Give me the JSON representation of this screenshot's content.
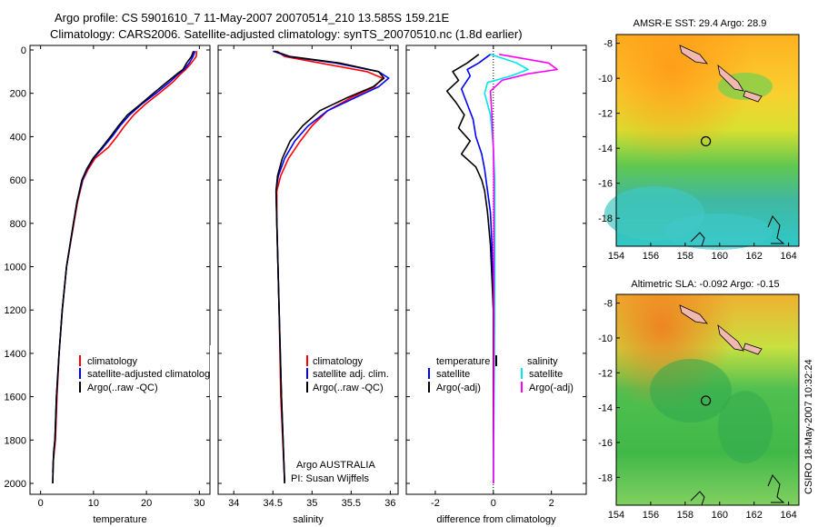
{
  "header": {
    "line1": "Argo profile: CS 5901610_7 11-May-2007 20070514_210 13.585S 159.21E",
    "line2": "Climatology: CARS2006. Satellite-adjusted climatology: synTS_20070510.nc (1.8d earlier)"
  },
  "stamp": "CSIRO 18-May-2007 10:32:24",
  "colors": {
    "red": "#ff0000",
    "blue": "#0000ff",
    "black": "#000000",
    "cyan": "#00e5ee",
    "magenta": "#ff00ff"
  },
  "chart_data": [
    {
      "id": "temperature",
      "type": "line",
      "xlabel": "temperature",
      "ylabel": "",
      "xlim": [
        -2,
        32
      ],
      "ylim": [
        2050,
        0
      ],
      "xticks": [
        0,
        10,
        20,
        30
      ],
      "yticks": [
        0,
        200,
        400,
        600,
        800,
        1000,
        1200,
        1400,
        1600,
        1800,
        2000
      ],
      "legend": [
        "climatology",
        "satellite-adjusted climatology",
        "Argo(..raw -QC)"
      ],
      "series": [
        {
          "name": "climatology",
          "color": "red",
          "x": [
            29.5,
            29.4,
            28.5,
            27.4,
            26.5,
            24.9,
            22.4,
            19.8,
            17.6,
            15.9,
            14.4,
            12.8,
            10.3,
            9.0,
            8.0,
            7.0,
            6.3,
            4.9,
            4.1,
            3.5,
            3.1,
            2.8,
            2.6,
            2.4,
            2.3
          ],
          "y": [
            5,
            30,
            60,
            90,
            110,
            150,
            200,
            250,
            300,
            350,
            400,
            450,
            500,
            550,
            600,
            700,
            800,
            1000,
            1200,
            1400,
            1600,
            1800,
            1850,
            1900,
            1950
          ]
        },
        {
          "name": "satellite-adjusted climatology",
          "color": "blue",
          "x": [
            29.2,
            28.8,
            28.1,
            27.1,
            26.1,
            24.3,
            21.8,
            19.1,
            16.8,
            15.0,
            13.5,
            11.8,
            10.0,
            8.8,
            7.9,
            6.9,
            6.2,
            4.9,
            4.1,
            3.5,
            3.0,
            2.7,
            2.5,
            2.4,
            2.3
          ],
          "y": [
            5,
            30,
            60,
            90,
            110,
            150,
            200,
            250,
            300,
            350,
            400,
            450,
            500,
            550,
            600,
            700,
            800,
            1000,
            1200,
            1400,
            1600,
            1800,
            1850,
            1900,
            2000
          ]
        },
        {
          "name": "Argo(..raw -QC)",
          "color": "black",
          "x": [
            28.9,
            28.5,
            27.6,
            26.9,
            25.8,
            23.8,
            21.3,
            18.9,
            16.4,
            14.7,
            13.2,
            11.6,
            9.9,
            8.7,
            7.8,
            6.9,
            6.2,
            4.9,
            4.1,
            3.5,
            3.0,
            2.7,
            2.5,
            2.4,
            2.3
          ],
          "y": [
            5,
            30,
            60,
            90,
            110,
            150,
            200,
            250,
            300,
            350,
            400,
            450,
            500,
            550,
            600,
            700,
            800,
            1000,
            1200,
            1400,
            1600,
            1800,
            1850,
            1900,
            2000
          ]
        }
      ]
    },
    {
      "id": "salinity",
      "type": "line",
      "xlabel": "salinity",
      "ylabel": "",
      "xlim": [
        33.8,
        36.1
      ],
      "ylim": [
        2050,
        0
      ],
      "xticks": [
        34,
        34.5,
        35,
        35.5,
        36
      ],
      "legend": [
        "climatology",
        "satellite adj. clim.",
        "Argo(..raw -QC)"
      ],
      "annotation": [
        "Argo AUSTRALIA",
        "PI: Susan Wijffels"
      ],
      "series": [
        {
          "name": "climatology",
          "color": "red",
          "x": [
            34.55,
            34.65,
            35.1,
            35.7,
            35.9,
            35.8,
            35.5,
            35.2,
            35.0,
            34.85,
            34.7,
            34.6,
            34.55,
            34.55,
            34.58,
            34.6,
            34.65
          ],
          "y": [
            5,
            30,
            60,
            100,
            130,
            170,
            220,
            280,
            350,
            420,
            500,
            580,
            650,
            800,
            1200,
            1600,
            2000
          ]
        },
        {
          "name": "satellite adj. clim.",
          "color": "blue",
          "x": [
            34.5,
            34.7,
            35.3,
            35.85,
            35.98,
            35.85,
            35.55,
            35.2,
            34.95,
            34.78,
            34.65,
            34.57,
            34.54,
            34.55,
            34.58,
            34.61,
            34.65
          ],
          "y": [
            5,
            30,
            60,
            100,
            130,
            170,
            220,
            280,
            350,
            420,
            500,
            580,
            650,
            800,
            1200,
            1600,
            2000
          ]
        },
        {
          "name": "Argo(..raw -QC)",
          "color": "black",
          "x": [
            34.52,
            34.72,
            35.35,
            35.85,
            35.92,
            35.78,
            35.45,
            35.1,
            34.88,
            34.72,
            34.62,
            34.56,
            34.54,
            34.55,
            34.58,
            34.61,
            34.65
          ],
          "y": [
            5,
            30,
            60,
            100,
            130,
            170,
            220,
            280,
            350,
            420,
            500,
            580,
            650,
            800,
            1200,
            1600,
            2000
          ]
        }
      ]
    },
    {
      "id": "difference",
      "type": "line",
      "xlabel": "difference from climatology",
      "ylabel": "",
      "xlim": [
        -3,
        3.2
      ],
      "ylim": [
        2050,
        0
      ],
      "xticks": [
        -2,
        0,
        2
      ],
      "legend_temperature": {
        "title": "temperature",
        "items": [
          "satellite",
          "Argo(-adj)"
        ]
      },
      "legend_salinity": {
        "title": "salinity",
        "items": [
          "satellite",
          "Argo(-adj)"
        ]
      },
      "series": [
        {
          "name": "temperature satellite",
          "color": "blue",
          "x": [
            -0.1,
            -0.5,
            -0.9,
            -0.8,
            -1.1,
            -0.9,
            -0.7,
            -0.6,
            -0.4,
            -0.3,
            -0.2,
            -0.1,
            -0.05,
            0,
            0,
            0
          ],
          "y": [
            20,
            60,
            90,
            120,
            180,
            250,
            320,
            400,
            480,
            550,
            650,
            750,
            900,
            1200,
            1600,
            2000
          ]
        },
        {
          "name": "temperature Argo(-adj)",
          "color": "black",
          "x": [
            -0.5,
            -0.9,
            -1.4,
            -1.2,
            -1.6,
            -1.3,
            -1.0,
            -1.2,
            -0.8,
            -1.1,
            -0.6,
            -0.4,
            -0.3,
            -0.2,
            -0.1,
            0,
            0
          ],
          "y": [
            20,
            60,
            100,
            140,
            190,
            240,
            300,
            360,
            420,
            480,
            540,
            600,
            650,
            750,
            900,
            1200,
            2000
          ]
        },
        {
          "name": "salinity satellite",
          "color": "cyan",
          "x": [
            -0.1,
            0.8,
            1.2,
            0.6,
            -0.2,
            -0.3,
            -0.1,
            0,
            0.05,
            0.05,
            0.05,
            0.03,
            0
          ],
          "y": [
            20,
            60,
            90,
            120,
            150,
            200,
            300,
            450,
            600,
            800,
            1100,
            1500,
            2000
          ]
        },
        {
          "name": "salinity Argo(-adj)",
          "color": "magenta",
          "x": [
            0.2,
            1.9,
            2.2,
            1.2,
            0.3,
            -0.1,
            -0.05,
            0,
            0.02,
            0.02,
            0.02,
            0
          ],
          "y": [
            20,
            60,
            90,
            110,
            140,
            190,
            300,
            450,
            600,
            900,
            1400,
            2000
          ]
        }
      ]
    },
    {
      "id": "sst_map",
      "type": "heatmap",
      "title": "AMSR-E SST: 29.4  Argo: 28.9",
      "xticks": [
        154,
        156,
        158,
        160,
        162,
        164
      ],
      "yticks": [
        -8,
        -10,
        -12,
        -14,
        -16,
        -18
      ],
      "xlim": [
        154,
        164.6
      ],
      "ylim": [
        -19.6,
        -7.5
      ],
      "marker": {
        "lon": 159.2,
        "lat": -13.6
      }
    },
    {
      "id": "sla_map",
      "type": "heatmap",
      "title": "Altimetric SLA: -0.092  Argo: -0.15",
      "xticks": [
        154,
        156,
        158,
        160,
        162,
        164
      ],
      "yticks": [
        -8,
        -10,
        -12,
        -14,
        -16,
        -18
      ],
      "xlim": [
        154,
        164.6
      ],
      "ylim": [
        -19.6,
        -7.5
      ],
      "marker": {
        "lon": 159.2,
        "lat": -13.6
      }
    }
  ]
}
